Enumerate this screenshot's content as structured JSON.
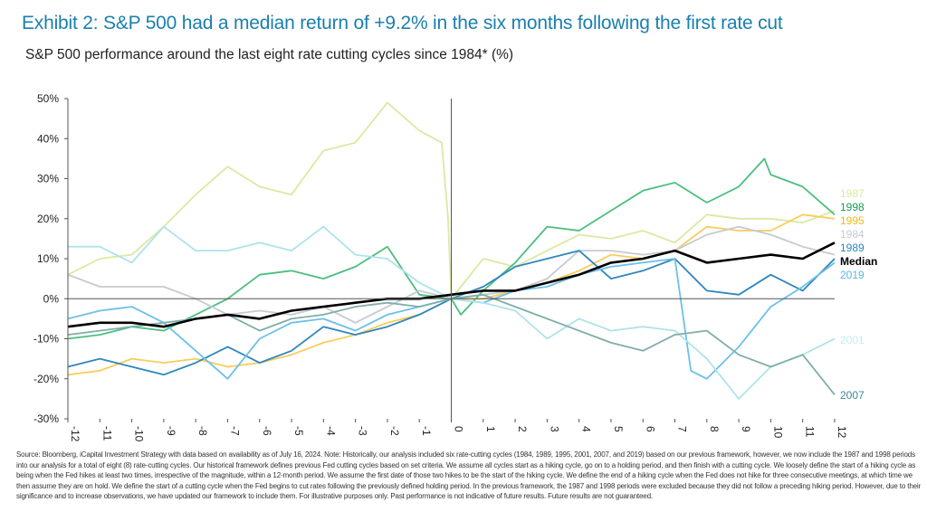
{
  "title": "Exhibit 2: S&P 500 had a median return of +9.2% in the six months following the first rate cut",
  "subtitle": "S&P 500 performance around the last eight rate cutting cycles since 1984* (%)",
  "footnote": "Source: Bloomberg, iCapital Investment Strategy with data based on availability as of July 16, 2024. Note: Historically, our analysis included six rate-cutting cycles (1984, 1989, 1995, 2001, 2007, and 2019) based on our previous framework, however, we now include the 1987 and 1998 periods into our analysis for a total of eight (8) rate-cutting cycles. Our historical framework defines previous Fed cutting cycles based on set criteria. We assume all cycles start as a hiking cycle, go on to a holding period, and then finish with a cutting cycle. We loosely define the start of a hiking cycle as being when the Fed hikes at least two times, irrespective of the magnitude, within a 12-month period. We assume the first date of those two hikes to be the start of the hiking cycle. We define the end of a hiking cycle when the Fed does not hike for three consecutive meetings, at which time we then assume they are on hold. We define the start of a cutting cycle when the Fed begins to cut rates following the previously defined holding period. In the previous framework, the 1987 and 1998 periods were excluded because they did not follow a preceding hiking period. However, due to their significance and to increase observations, we have updated our framework to include them. For illustrative purposes only. Past performance is not indicative of future results. Future results are not guaranteed.",
  "chart_data": {
    "type": "line",
    "xlim": [
      -12,
      12
    ],
    "ylim": [
      -30,
      50
    ],
    "x_ticks": [
      "-12",
      "-11",
      "-10",
      "-9",
      "-8",
      "-7",
      "-6",
      "-5",
      "-4",
      "-3",
      "-2",
      "-1",
      "0",
      "1",
      "2",
      "3",
      "4",
      "5",
      "6",
      "7",
      "8",
      "9",
      "10",
      "11",
      "12"
    ],
    "y_ticks": [
      "50%",
      "40%",
      "30%",
      "20%",
      "10%",
      "0%",
      "-10%",
      "-20%",
      "-30%"
    ],
    "grid": false,
    "legend_placement": "right end labels",
    "series": [
      {
        "name": "1987",
        "color": "#d9eaa3",
        "points": [
          [
            -12,
            6
          ],
          [
            -11,
            10
          ],
          [
            -10,
            11
          ],
          [
            -9,
            18
          ],
          [
            -8,
            26
          ],
          [
            -7,
            33
          ],
          [
            -6,
            28
          ],
          [
            -5,
            26
          ],
          [
            -4,
            37
          ],
          [
            -3,
            39
          ],
          [
            -2,
            49
          ],
          [
            -1,
            42
          ],
          [
            -0.3,
            39
          ],
          [
            -0.1,
            20
          ],
          [
            0,
            0
          ],
          [
            1,
            10
          ],
          [
            2,
            8
          ],
          [
            3,
            12
          ],
          [
            4,
            16
          ],
          [
            5,
            15
          ],
          [
            6,
            17
          ],
          [
            7,
            14
          ],
          [
            8,
            21
          ],
          [
            9,
            20
          ],
          [
            10,
            20
          ],
          [
            11,
            19
          ],
          [
            12,
            22
          ]
        ]
      },
      {
        "name": "1998",
        "color": "#4cbf7f",
        "points": [
          [
            -12,
            -10
          ],
          [
            -11,
            -9
          ],
          [
            -10,
            -7
          ],
          [
            -9,
            -8
          ],
          [
            -8,
            -4
          ],
          [
            -7,
            0
          ],
          [
            -6,
            6
          ],
          [
            -5,
            7
          ],
          [
            -4,
            5
          ],
          [
            -3,
            8
          ],
          [
            -2,
            13
          ],
          [
            -1,
            1
          ],
          [
            0,
            0
          ],
          [
            0.3,
            -4
          ],
          [
            1,
            2
          ],
          [
            2,
            9
          ],
          [
            3,
            18
          ],
          [
            4,
            17
          ],
          [
            5,
            22
          ],
          [
            6,
            27
          ],
          [
            7,
            29
          ],
          [
            8,
            24
          ],
          [
            9,
            28
          ],
          [
            9.8,
            35
          ],
          [
            10,
            31
          ],
          [
            11,
            28
          ],
          [
            12,
            21
          ]
        ]
      },
      {
        "name": "1995",
        "color": "#f9cc5e",
        "points": [
          [
            -12,
            -19
          ],
          [
            -11,
            -18
          ],
          [
            -10,
            -15
          ],
          [
            -9,
            -16
          ],
          [
            -8,
            -15
          ],
          [
            -7,
            -17
          ],
          [
            -6,
            -16
          ],
          [
            -5,
            -14
          ],
          [
            -4,
            -11
          ],
          [
            -3,
            -9
          ],
          [
            -2,
            -6
          ],
          [
            -1,
            -4
          ],
          [
            0,
            0
          ],
          [
            1,
            0
          ],
          [
            2,
            2
          ],
          [
            3,
            4
          ],
          [
            4,
            7
          ],
          [
            5,
            11
          ],
          [
            6,
            10
          ],
          [
            7,
            12
          ],
          [
            8,
            18
          ],
          [
            9,
            17
          ],
          [
            10,
            17
          ],
          [
            11,
            21
          ],
          [
            12,
            20
          ]
        ]
      },
      {
        "name": "1984",
        "color": "#c5cad3",
        "points": [
          [
            -12,
            6
          ],
          [
            -11,
            3
          ],
          [
            -10,
            3
          ],
          [
            -9,
            3
          ],
          [
            -8,
            0
          ],
          [
            -7,
            -4
          ],
          [
            -6,
            -3
          ],
          [
            -5,
            -4
          ],
          [
            -4,
            -2
          ],
          [
            -3,
            -6
          ],
          [
            -2,
            -2
          ],
          [
            -1,
            2
          ],
          [
            0,
            0
          ],
          [
            1,
            1
          ],
          [
            2,
            2
          ],
          [
            3,
            5
          ],
          [
            4,
            12
          ],
          [
            5,
            12
          ],
          [
            6,
            11
          ],
          [
            7,
            12
          ],
          [
            8,
            16
          ],
          [
            9,
            18
          ],
          [
            10,
            16
          ],
          [
            11,
            13
          ],
          [
            12,
            11
          ]
        ]
      },
      {
        "name": "1989",
        "color": "#2f86bd",
        "points": [
          [
            -12,
            -17
          ],
          [
            -11,
            -15
          ],
          [
            -10,
            -17
          ],
          [
            -9,
            -19
          ],
          [
            -8,
            -16
          ],
          [
            -7,
            -12
          ],
          [
            -6,
            -16
          ],
          [
            -5,
            -13
          ],
          [
            -4,
            -7
          ],
          [
            -3,
            -9
          ],
          [
            -2,
            -7
          ],
          [
            -1,
            -4
          ],
          [
            0,
            0
          ],
          [
            1,
            3
          ],
          [
            2,
            8
          ],
          [
            3,
            10
          ],
          [
            4,
            12
          ],
          [
            5,
            5
          ],
          [
            6,
            7
          ],
          [
            7,
            10
          ],
          [
            8,
            2
          ],
          [
            9,
            1
          ],
          [
            10,
            6
          ],
          [
            11,
            2
          ],
          [
            12,
            10
          ]
        ]
      },
      {
        "name": "Median",
        "color": "#000000",
        "points": [
          [
            -12,
            -7
          ],
          [
            -11,
            -6
          ],
          [
            -10,
            -6
          ],
          [
            -9,
            -7
          ],
          [
            -8,
            -5
          ],
          [
            -7,
            -4
          ],
          [
            -6,
            -5
          ],
          [
            -5,
            -3
          ],
          [
            -4,
            -2
          ],
          [
            -3,
            -1
          ],
          [
            -2,
            0
          ],
          [
            -1,
            0
          ],
          [
            0,
            1
          ],
          [
            1,
            2
          ],
          [
            2,
            2
          ],
          [
            3,
            4
          ],
          [
            4,
            6
          ],
          [
            5,
            9
          ],
          [
            6,
            10
          ],
          [
            7,
            12
          ],
          [
            8,
            9
          ],
          [
            9,
            10
          ],
          [
            10,
            11
          ],
          [
            11,
            10
          ],
          [
            12,
            14
          ]
        ]
      },
      {
        "name": "2019",
        "color": "#6cc0ea",
        "points": [
          [
            -12,
            -5
          ],
          [
            -11,
            -3
          ],
          [
            -10,
            -2
          ],
          [
            -9,
            -6
          ],
          [
            -8,
            -13
          ],
          [
            -7,
            -20
          ],
          [
            -6,
            -10
          ],
          [
            -5,
            -6
          ],
          [
            -4,
            -5
          ],
          [
            -3,
            -8
          ],
          [
            -2,
            -4
          ],
          [
            -1,
            -2
          ],
          [
            0,
            0
          ],
          [
            1,
            -1
          ],
          [
            2,
            2
          ],
          [
            3,
            3
          ],
          [
            4,
            6
          ],
          [
            5,
            8
          ],
          [
            6,
            9
          ],
          [
            7,
            10
          ],
          [
            7.5,
            -18
          ],
          [
            8,
            -20
          ],
          [
            9,
            -12
          ],
          [
            10,
            -2
          ],
          [
            11,
            3
          ],
          [
            12,
            9
          ]
        ]
      },
      {
        "name": "2001",
        "color": "#aee3ea",
        "points": [
          [
            -12,
            13
          ],
          [
            -11,
            13
          ],
          [
            -10,
            9
          ],
          [
            -9,
            18
          ],
          [
            -8,
            12
          ],
          [
            -7,
            12
          ],
          [
            -6,
            14
          ],
          [
            -5,
            12
          ],
          [
            -4,
            18
          ],
          [
            -3,
            11
          ],
          [
            -2,
            10
          ],
          [
            -1,
            4
          ],
          [
            0,
            0
          ],
          [
            1,
            -1
          ],
          [
            2,
            -3
          ],
          [
            3,
            -10
          ],
          [
            4,
            -5
          ],
          [
            5,
            -8
          ],
          [
            6,
            -7
          ],
          [
            7,
            -8
          ],
          [
            8,
            -15
          ],
          [
            9,
            -25
          ],
          [
            10,
            -17
          ],
          [
            11,
            -14
          ],
          [
            12,
            -10
          ]
        ]
      },
      {
        "name": "2007",
        "color": "#80aea9",
        "points": [
          [
            -12,
            -9
          ],
          [
            -11,
            -8
          ],
          [
            -10,
            -7
          ],
          [
            -9,
            -6
          ],
          [
            -8,
            -5
          ],
          [
            -7,
            -4
          ],
          [
            -6,
            -8
          ],
          [
            -5,
            -5
          ],
          [
            -4,
            -4
          ],
          [
            -3,
            -2
          ],
          [
            -2,
            -1
          ],
          [
            -1,
            -2
          ],
          [
            0,
            0
          ],
          [
            1,
            1
          ],
          [
            2,
            -2
          ],
          [
            3,
            -5
          ],
          [
            4,
            -8
          ],
          [
            5,
            -11
          ],
          [
            6,
            -13
          ],
          [
            7,
            -9
          ],
          [
            8,
            -8
          ],
          [
            9,
            -14
          ],
          [
            10,
            -17
          ],
          [
            11,
            -14
          ],
          [
            12,
            -24
          ]
        ]
      }
    ],
    "label_colors": {
      "1987": "#d9eaa3",
      "1998": "#1a9d55",
      "1995": "#f5b90f",
      "1984": "#c5cad3",
      "1989": "#2f86bd",
      "Median": "#000000",
      "2019": "#5bb5e5",
      "2001": "#c5ecf0",
      "2007": "#3d8a8f"
    }
  }
}
